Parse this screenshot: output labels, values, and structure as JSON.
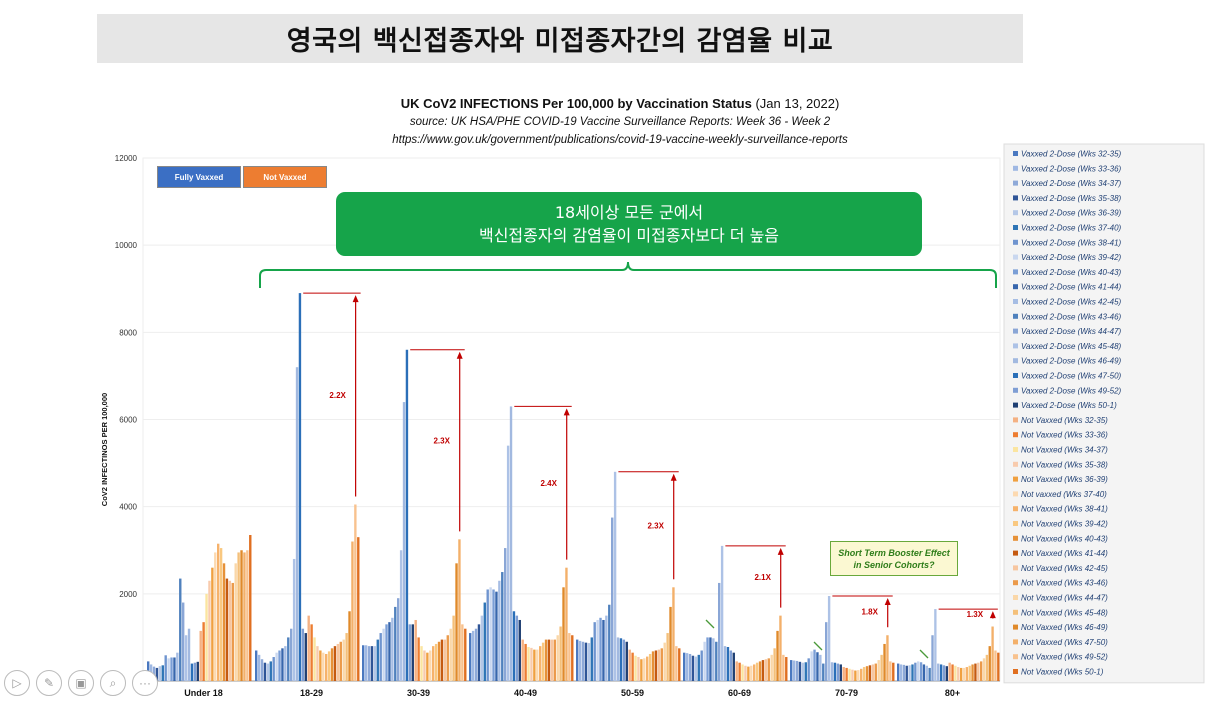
{
  "page_title": "영국의 백신접종자와 미접종자간의 감염율 비교",
  "chart_title_main": "UK CoV2 INFECTIONS Per 100,000 by Vaccination Status",
  "chart_title_date": "(Jan 13, 2022)",
  "chart_source": "source:  UK HSA/PHE COVID-19 Vaccine Surveillance Reports:  Week 36 - Week 2",
  "chart_url": "https://www.gov.uk/government/publications/covid-19-vaccine-weekly-surveillance-reports",
  "callout": {
    "line1": "18세이상 모든 군에서",
    "line2": "백신접종자의 감염율이 미접종자보다 더 높음"
  },
  "legend_boxes": [
    {
      "label": "Fully Vaxxed",
      "color": "#3b6fc4"
    },
    {
      "label": "Not Vaxxed",
      "color": "#ed7d31"
    }
  ],
  "note": {
    "line1": "Short Term Booster Effect",
    "line2": "in Senior Cohorts?"
  },
  "toolbar": [
    {
      "name": "play-icon",
      "glyph": "▷"
    },
    {
      "name": "pen-icon",
      "glyph": "✎"
    },
    {
      "name": "slides-icon",
      "glyph": "▣"
    },
    {
      "name": "zoom-icon",
      "glyph": "⌕"
    },
    {
      "name": "more-icon",
      "glyph": "···"
    }
  ],
  "chart_data": {
    "type": "bar",
    "title": "UK CoV2 INFECTIONS Per 100,000 by Vaccination Status",
    "ylabel": "CoV2 INFECTINOS  PER 100,000",
    "ylim": [
      0,
      12000
    ],
    "yticks": [
      2000,
      4000,
      6000,
      8000,
      10000,
      12000
    ],
    "categories": [
      "Under 18",
      "18-29",
      "30-39",
      "40-49",
      "50-59",
      "60-69",
      "70-79",
      "80+"
    ],
    "vaxxed_weeks": [
      "Wks 32-35",
      "Wks 33-36",
      "Wks 34-37",
      "Wks 35-38",
      "Wks 36-39",
      "Wks 37-40",
      "Wks 38-41",
      "Wks 39-42",
      "Wks 40-43",
      "Wks 41-44",
      "Wks 42-45",
      "Wks 43-46",
      "Wks 44-47",
      "Wks 45-48",
      "Wks 46-49",
      "Wks 47-50",
      "Wks 49-52",
      "Wks 50-1"
    ],
    "vaxxed_colors": [
      "#4a78c0",
      "#9fb8e3",
      "#8ea9d8",
      "#2f5597",
      "#b4c7e7",
      "#2e75b6",
      "#6f94cf",
      "#c9d7ef",
      "#7a9ed6",
      "#3766ad",
      "#a6bde4",
      "#4f81bd",
      "#8aa6d6",
      "#adc2e6",
      "#a2b9e0",
      "#2b6fb8",
      "#7f9ed4",
      "#1f3f73"
    ],
    "unvaxxed_weeks": [
      "Wks 32-35",
      "Wks 33-36",
      "Wks 34-37",
      "Wks 35-38",
      "Wks 36-39",
      "Wks 37-40",
      "Wks 38-41",
      "Wks 39-42",
      "Wks 40-43",
      "Wks 41-44",
      "Wks 42-45",
      "Wks 43-46",
      "Wks 44-47",
      "Wks 45-48",
      "Wks 46-49",
      "Wks 47-50",
      "Wks 49-52",
      "Wks 50-1"
    ],
    "unvaxxed_colors": [
      "#f4b183",
      "#ed7d31",
      "#fbe5a0",
      "#f8cbad",
      "#f0a040",
      "#fcd9b0",
      "#f6b26b",
      "#f9c880",
      "#e69138",
      "#c55a11",
      "#f7c6a0",
      "#eb9a4a",
      "#fad7a8",
      "#f4c07a",
      "#e08a2a",
      "#f3b06a",
      "#f8c28e",
      "#e06f20"
    ],
    "legend_labels_vaxxed": [
      "Vaxxed 2-Dose (Wks 32-35)",
      "Vaxxed 2-Dose (Wks 33-36)",
      "Vaxxed 2-Dose (Wks 34-37)",
      "Vaxxed 2-Dose (Wks 35-38)",
      "Vaxxed 2-Dose (Wks 36-39)",
      "Vaxxed 2-Dose (Wks 37-40)",
      "Vaxxed 2-Dose (Wks 38-41)",
      "Vaxxed 2-Dose (Wks 39-42)",
      "Vaxxed 2-Dose (Wks 40-43)",
      "Vaxxed 2-Dose (Wks 41-44)",
      "Vaxxed 2-Dose (Wks 42-45)",
      "Vaxxed 2-Dose (Wks 43-46)",
      "Vaxxed 2-Dose (Wks 44-47)",
      "Vaxxed 2-Dose (Wks 45-48)",
      "Vaxxed 2-Dose (Wks 46-49)",
      "Vaxxed 2-Dose (Wks 47-50)",
      "Vaxxed 2-Dose (Wks 49-52)",
      "Vaxxed 2-Dose (Wks 50-1)"
    ],
    "legend_labels_unvaxxed": [
      "Not Vaxxed (Wks 32-35)",
      "Not Vaxxed (Wks 33-36)",
      "Not Vaxxed (Wks 34-37)",
      "Not Vaxxed (Wks 35-38)",
      "Not Vaxxed (Wks 36-39)",
      "Not vaxxed (Wks 37-40)",
      "Not Vaxxed (Wks 38-41)",
      "Not Vaxxed (Wks 39-42)",
      "Not Vaxxed (Wks 40-43)",
      "Not Vaxxed (Wks 41-44)",
      "Not Vaxxed (Wks 42-45)",
      "Not Vaxxed (Wks 43-46)",
      "Not Vaxxed (Wks 44-47)",
      "Not Vaxxed (Wks 45-48)",
      "Not Vaxxed (Wks 46-49)",
      "Not Vaxxed (Wks 47-50)",
      "Not Vaxxed (Wks 49-52)",
      "Not Vaxxed (Wks 50-1)"
    ],
    "groups": [
      {
        "category": "Under 18",
        "vaxxed": [
          450,
          380,
          330,
          300,
          340,
          360,
          590,
          520,
          540,
          540,
          650,
          2350,
          1800,
          1050,
          1200,
          400,
          420,
          440
        ],
        "unvaxxed": [
          1150,
          1350,
          2000,
          2300,
          2600,
          2950,
          3150,
          3050,
          2700,
          2350,
          2300,
          2250,
          2700,
          2950,
          3000,
          2950,
          3000,
          3350
        ]
      },
      {
        "category": "18-29",
        "vaxxed": [
          700,
          600,
          500,
          420,
          400,
          450,
          550,
          650,
          700,
          750,
          800,
          1000,
          1200,
          2800,
          7200,
          8900,
          1200,
          1100
        ],
        "unvaxxed": [
          1500,
          1300,
          1000,
          800,
          700,
          650,
          620,
          680,
          750,
          800,
          850,
          900,
          950,
          1100,
          1600,
          3200,
          4050,
          3300
        ]
      },
      {
        "category": "30-39",
        "vaxxed": [
          820,
          820,
          800,
          800,
          800,
          950,
          1100,
          1200,
          1300,
          1350,
          1450,
          1700,
          1900,
          3000,
          6400,
          7600,
          1300,
          1300
        ],
        "unvaxxed": [
          1400,
          1000,
          800,
          700,
          650,
          700,
          800,
          850,
          900,
          950,
          950,
          1050,
          1200,
          1500,
          2700,
          3250,
          1300,
          1200
        ],
        "ratio": "2.3X"
      },
      {
        "category": "40-49",
        "vaxxed": [
          1100,
          1150,
          1200,
          1300,
          1500,
          1800,
          2100,
          2150,
          2100,
          2050,
          2300,
          2500,
          3050,
          5400,
          6300,
          1600,
          1500,
          1400
        ],
        "unvaxxed": [
          950,
          850,
          780,
          760,
          720,
          720,
          800,
          880,
          950,
          950,
          950,
          950,
          1050,
          1250,
          2150,
          2600,
          1100,
          1050
        ],
        "ratio": "2.4X"
      },
      {
        "category": "50-59",
        "vaxxed": [
          950,
          920,
          900,
          880,
          870,
          1000,
          1350,
          1400,
          1450,
          1400,
          1500,
          1750,
          3750,
          4800,
          1000,
          980,
          950,
          900
        ],
        "unvaxxed": [
          720,
          650,
          580,
          550,
          500,
          520,
          560,
          620,
          680,
          700,
          720,
          750,
          880,
          1100,
          1700,
          2150,
          800,
          750
        ],
        "ratio": "2.3X"
      },
      {
        "category": "60-69",
        "vaxxed": [
          650,
          640,
          620,
          580,
          560,
          600,
          700,
          900,
          1000,
          1000,
          980,
          900,
          2250,
          3100,
          800,
          780,
          700,
          650
        ],
        "unvaxxed": [
          450,
          420,
          380,
          350,
          330,
          350,
          380,
          420,
          450,
          480,
          500,
          520,
          600,
          750,
          1150,
          1500,
          600,
          550
        ],
        "ratio": "2.1X"
      },
      {
        "category": "70-79",
        "vaxxed": [
          480,
          470,
          460,
          440,
          420,
          430,
          520,
          680,
          720,
          660,
          600,
          400,
          1350,
          1950,
          430,
          420,
          400,
          380
        ],
        "unvaxxed": [
          320,
          300,
          280,
          260,
          240,
          250,
          280,
          320,
          340,
          360,
          380,
          400,
          480,
          600,
          850,
          1050,
          450,
          420
        ],
        "ratio": "1.8X"
      },
      {
        "category": "80+",
        "vaxxed": [
          400,
          380,
          370,
          350,
          360,
          380,
          420,
          450,
          430,
          380,
          350,
          300,
          1050,
          1650,
          400,
          380,
          360,
          340
        ],
        "unvaxxed": [
          420,
          380,
          350,
          320,
          300,
          300,
          320,
          350,
          380,
          400,
          420,
          450,
          520,
          600,
          800,
          1250,
          700,
          650
        ],
        "ratio": "1.3X"
      }
    ],
    "ratio_labels": [
      "2.2X",
      "2.3X",
      "2.4X",
      "2.3X",
      "2.1X",
      "1.8X",
      "1.3X"
    ]
  }
}
